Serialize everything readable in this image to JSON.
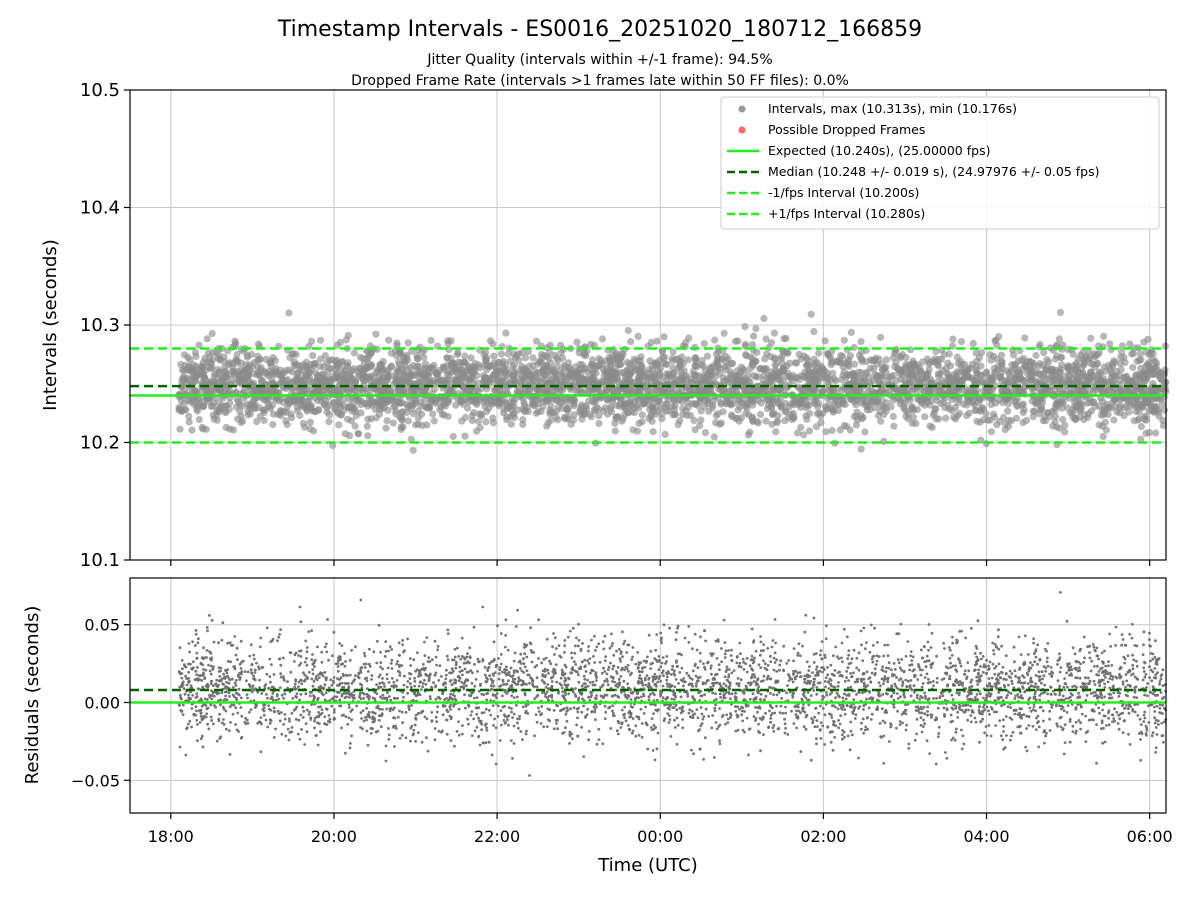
{
  "chart_data": [
    {
      "type": "scatter",
      "title": "Timestamp Intervals - ES0016_20251020_180712_166859",
      "subtitle_lines": [
        "Jitter Quality (intervals within +/-1 frame): 94.5%",
        "Dropped Frame Rate (intervals >1 frames late within 50 FF files): 0.0%"
      ],
      "xlabel": "",
      "ylabel": "Intervals (seconds)",
      "x_unit": "hours since 18:00 UTC",
      "xlim": [
        -0.5,
        12.2
      ],
      "ylim": [
        10.1,
        10.5
      ],
      "yticks": [
        {
          "value": 10.1,
          "label": "10.1"
        },
        {
          "value": 10.2,
          "label": "10.2"
        },
        {
          "value": 10.3,
          "label": "10.3"
        },
        {
          "value": 10.4,
          "label": "10.4"
        },
        {
          "value": 10.5,
          "label": "10.5"
        }
      ],
      "xticks": [
        0,
        2,
        4,
        6,
        8,
        10,
        12
      ],
      "grid": true,
      "series": [
        {
          "name": "Intervals, max (10.313s), min (10.176s)",
          "kind": "scatter",
          "color": "#808080",
          "x_start": 0.1,
          "x_end": 12.2,
          "count": 4250,
          "center": 10.248,
          "spread": 0.019,
          "max": 10.313,
          "min": 10.176
        },
        {
          "name": "Possible Dropped Frames",
          "kind": "scatter",
          "color": "#ff4444",
          "points": []
        }
      ],
      "hlines": [
        {
          "name": "Expected (10.240s), (25.00000 fps)",
          "value": 10.24,
          "color": "#22ee22",
          "style": "solid"
        },
        {
          "name": "Median (10.248 +/- 0.019 s), (24.97976 +/- 0.05 fps)",
          "value": 10.248,
          "color": "#006400",
          "style": "dashed"
        },
        {
          "name": "-1/fps Interval (10.200s)",
          "value": 10.2,
          "color": "#22ee22",
          "style": "dashed"
        },
        {
          "name": "+1/fps Interval (10.280s)",
          "value": 10.28,
          "color": "#22ee22",
          "style": "dashed"
        }
      ],
      "legend": {
        "position": "top-right",
        "entries": [
          {
            "label": "Intervals, max (10.313s), min (10.176s)",
            "marker": "dot",
            "color": "#999999"
          },
          {
            "label": "Possible Dropped Frames",
            "marker": "dot",
            "color": "#ff6666"
          },
          {
            "label": "Expected (10.240s), (25.00000 fps)",
            "marker": "solid",
            "color": "#22ee22"
          },
          {
            "label": "Median (10.248 +/- 0.019 s), (24.97976 +/- 0.05 fps)",
            "marker": "dashed",
            "color": "#006400"
          },
          {
            "label": "-1/fps Interval (10.200s)",
            "marker": "dashed",
            "color": "#22ee22"
          },
          {
            "label": "+1/fps Interval (10.280s)",
            "marker": "dashed",
            "color": "#22ee22"
          }
        ]
      }
    },
    {
      "type": "scatter",
      "xlabel": "Time (UTC)",
      "ylabel": "Residuals (seconds)",
      "x_unit": "hours since 18:00 UTC",
      "xlim": [
        -0.5,
        12.2
      ],
      "ylim": [
        -0.071,
        0.08
      ],
      "yticks": [
        {
          "value": -0.05,
          "label": "−0.05"
        },
        {
          "value": 0.0,
          "label": "0.00"
        },
        {
          "value": 0.05,
          "label": "0.05"
        }
      ],
      "xticks": [
        {
          "value": 0,
          "label": "18:00"
        },
        {
          "value": 2,
          "label": "20:00"
        },
        {
          "value": 4,
          "label": "22:00"
        },
        {
          "value": 6,
          "label": "00:00"
        },
        {
          "value": 8,
          "label": "02:00"
        },
        {
          "value": 10,
          "label": "04:00"
        },
        {
          "value": 12,
          "label": "06:00"
        }
      ],
      "grid": true,
      "series": [
        {
          "name": "Residuals",
          "kind": "scatter",
          "color": "#707070",
          "x_start": 0.1,
          "x_end": 12.2,
          "count": 4250,
          "center": 0.008,
          "spread": 0.019,
          "max": 0.073,
          "min": -0.064
        }
      ],
      "hlines": [
        {
          "name": "Expected residual",
          "value": 0.0,
          "color": "#22ee22",
          "style": "solid"
        },
        {
          "name": "Median residual",
          "value": 0.008,
          "color": "#006400",
          "style": "dashed"
        }
      ]
    }
  ]
}
